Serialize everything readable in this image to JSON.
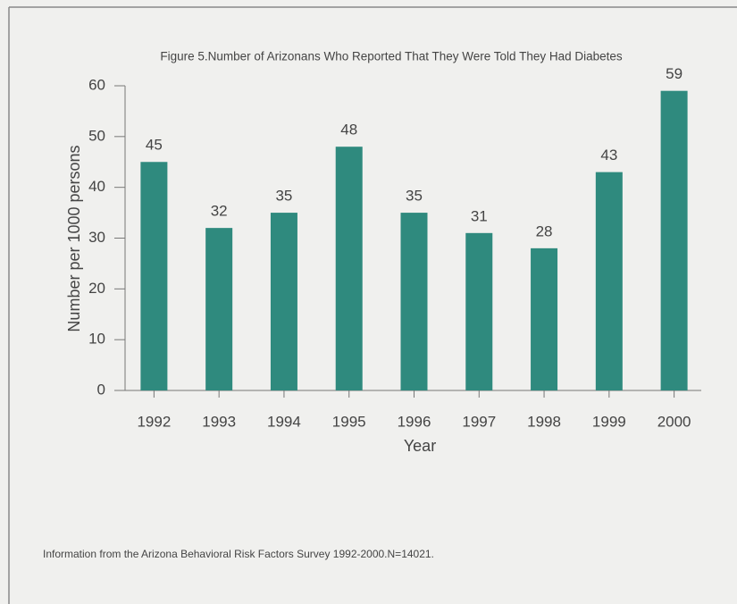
{
  "chart_data": {
    "type": "bar",
    "title": "Figure 5.Number of Arizonans Who Reported That They Were Told They Had Diabetes",
    "x_label": "Year",
    "y_label": "Number per 1000 persons",
    "categories": [
      "1992",
      "1993",
      "1994",
      "1995",
      "1996",
      "1997",
      "1998",
      "1999",
      "2000"
    ],
    "values": [
      45,
      32,
      35,
      48,
      35,
      31,
      28,
      43,
      59
    ],
    "color": "#2f8a7e",
    "ylim": [
      0,
      60
    ],
    "yticks": [
      0,
      10,
      20,
      30,
      40,
      50,
      60
    ],
    "grid": false,
    "note": "Information from the Arizona Behavioral Risk Factors Survey 1992-2000.N=14021."
  }
}
